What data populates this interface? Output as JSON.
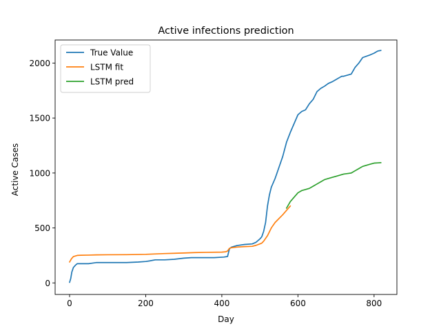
{
  "chart_data": {
    "type": "line",
    "title": "Active infections prediction",
    "xlabel": "Day",
    "ylabel": "Active Cases",
    "xlim": [
      -38,
      860
    ],
    "ylim": [
      -105,
      2210
    ],
    "xticks": [
      0,
      200,
      400,
      600,
      800
    ],
    "yticks": [
      0,
      500,
      1000,
      1500,
      2000
    ],
    "grid": false,
    "legend_position": "top-left",
    "series": [
      {
        "name": "True Value",
        "color": "#1f77b4",
        "x": [
          0,
          3,
          6,
          10,
          15,
          20,
          25,
          50,
          60,
          70,
          100,
          150,
          180,
          200,
          210,
          225,
          250,
          275,
          300,
          320,
          350,
          380,
          405,
          415,
          420,
          425,
          440,
          460,
          480,
          490,
          500,
          505,
          510,
          515,
          520,
          525,
          530,
          540,
          550,
          560,
          570,
          580,
          590,
          600,
          605,
          610,
          620,
          630,
          640,
          650,
          660,
          670,
          680,
          690,
          700,
          710,
          715,
          720,
          740,
          750,
          760,
          770,
          790,
          800,
          805,
          810,
          818
        ],
        "y": [
          5,
          40,
          100,
          140,
          160,
          175,
          175,
          175,
          180,
          185,
          185,
          185,
          190,
          195,
          200,
          210,
          210,
          215,
          225,
          230,
          230,
          230,
          235,
          240,
          310,
          325,
          340,
          350,
          355,
          370,
          400,
          420,
          470,
          550,
          700,
          800,
          870,
          950,
          1050,
          1150,
          1280,
          1370,
          1450,
          1530,
          1545,
          1560,
          1575,
          1630,
          1670,
          1740,
          1770,
          1790,
          1815,
          1830,
          1850,
          1870,
          1880,
          1880,
          1900,
          1960,
          2000,
          2050,
          2075,
          2090,
          2100,
          2110,
          2115
        ]
      },
      {
        "name": "LSTM fit",
        "color": "#ff7f0e",
        "x": [
          0,
          5,
          10,
          20,
          30,
          50,
          70,
          100,
          150,
          200,
          250,
          300,
          330,
          360,
          400,
          410,
          415,
          420,
          425,
          440,
          460,
          480,
          490,
          500,
          505,
          510,
          520,
          530,
          540,
          550,
          560,
          570,
          580
        ],
        "y": [
          190,
          220,
          240,
          250,
          252,
          253,
          255,
          256,
          257,
          260,
          267,
          272,
          276,
          278,
          280,
          283,
          290,
          315,
          320,
          326,
          330,
          333,
          342,
          355,
          362,
          380,
          430,
          500,
          550,
          585,
          620,
          660,
          700
        ]
      },
      {
        "name": "LSTM pred",
        "color": "#2ca02c",
        "x": [
          570,
          580,
          590,
          600,
          610,
          620,
          630,
          640,
          650,
          660,
          670,
          680,
          690,
          700,
          710,
          720,
          730,
          740,
          750,
          760,
          770,
          780,
          790,
          800,
          810,
          818
        ],
        "y": [
          680,
          740,
          780,
          820,
          840,
          850,
          860,
          880,
          900,
          920,
          940,
          950,
          960,
          970,
          980,
          990,
          995,
          1000,
          1020,
          1040,
          1060,
          1070,
          1080,
          1090,
          1092,
          1094
        ]
      }
    ]
  }
}
